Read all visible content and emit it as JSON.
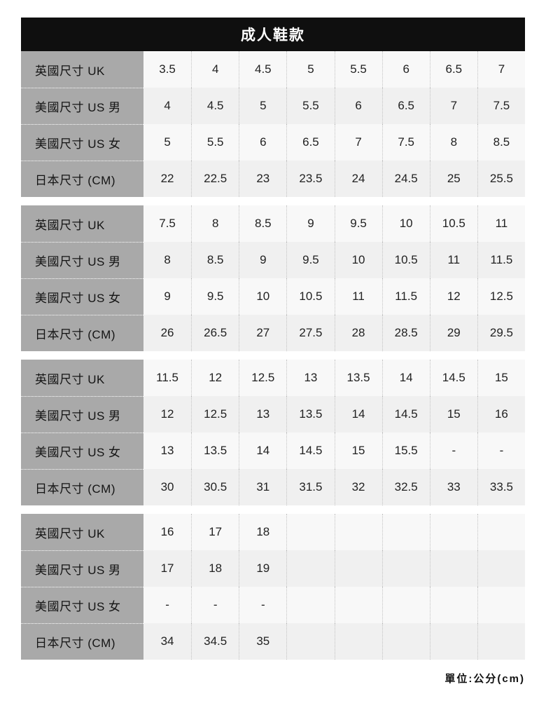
{
  "header": {
    "title": "成人鞋款"
  },
  "footer": {
    "unit_label": "單位:公分(cm)"
  },
  "row_labels": [
    "英國尺寸 UK",
    "美國尺寸 US 男",
    "美國尺寸 US 女",
    "日本尺寸 (CM)"
  ],
  "colors": {
    "header_bg": "#0f0f0f",
    "header_text": "#ffffff",
    "label_column_bg": "#a9a9a9",
    "row_light": "#f8f8f8",
    "row_dark": "#f0f0f0",
    "dotted_divider": "#c2c2c2",
    "text": "#222222"
  },
  "chart_data": {
    "type": "table",
    "title": "成人鞋款",
    "unit_note": "單位:公分(cm)",
    "row_headers": [
      "英國尺寸 UK",
      "美國尺寸 US 男",
      "美國尺寸 US 女",
      "日本尺寸 (CM)"
    ],
    "blocks": [
      {
        "rows": [
          [
            "3.5",
            "4",
            "4.5",
            "5",
            "5.5",
            "6",
            "6.5",
            "7"
          ],
          [
            "4",
            "4.5",
            "5",
            "5.5",
            "6",
            "6.5",
            "7",
            "7.5"
          ],
          [
            "5",
            "5.5",
            "6",
            "6.5",
            "7",
            "7.5",
            "8",
            "8.5"
          ],
          [
            "22",
            "22.5",
            "23",
            "23.5",
            "24",
            "24.5",
            "25",
            "25.5"
          ]
        ]
      },
      {
        "rows": [
          [
            "7.5",
            "8",
            "8.5",
            "9",
            "9.5",
            "10",
            "10.5",
            "11"
          ],
          [
            "8",
            "8.5",
            "9",
            "9.5",
            "10",
            "10.5",
            "11",
            "11.5"
          ],
          [
            "9",
            "9.5",
            "10",
            "10.5",
            "11",
            "11.5",
            "12",
            "12.5"
          ],
          [
            "26",
            "26.5",
            "27",
            "27.5",
            "28",
            "28.5",
            "29",
            "29.5"
          ]
        ]
      },
      {
        "rows": [
          [
            "11.5",
            "12",
            "12.5",
            "13",
            "13.5",
            "14",
            "14.5",
            "15"
          ],
          [
            "12",
            "12.5",
            "13",
            "13.5",
            "14",
            "14.5",
            "15",
            "16"
          ],
          [
            "13",
            "13.5",
            "14",
            "14.5",
            "15",
            "15.5",
            "-",
            "-"
          ],
          [
            "30",
            "30.5",
            "31",
            "31.5",
            "32",
            "32.5",
            "33",
            "33.5"
          ]
        ]
      },
      {
        "rows": [
          [
            "16",
            "17",
            "18",
            "",
            "",
            "",
            "",
            ""
          ],
          [
            "17",
            "18",
            "19",
            "",
            "",
            "",
            "",
            ""
          ],
          [
            "-",
            "-",
            "-",
            "",
            "",
            "",
            "",
            ""
          ],
          [
            "34",
            "34.5",
            "35",
            "",
            "",
            "",
            "",
            ""
          ]
        ]
      }
    ]
  }
}
